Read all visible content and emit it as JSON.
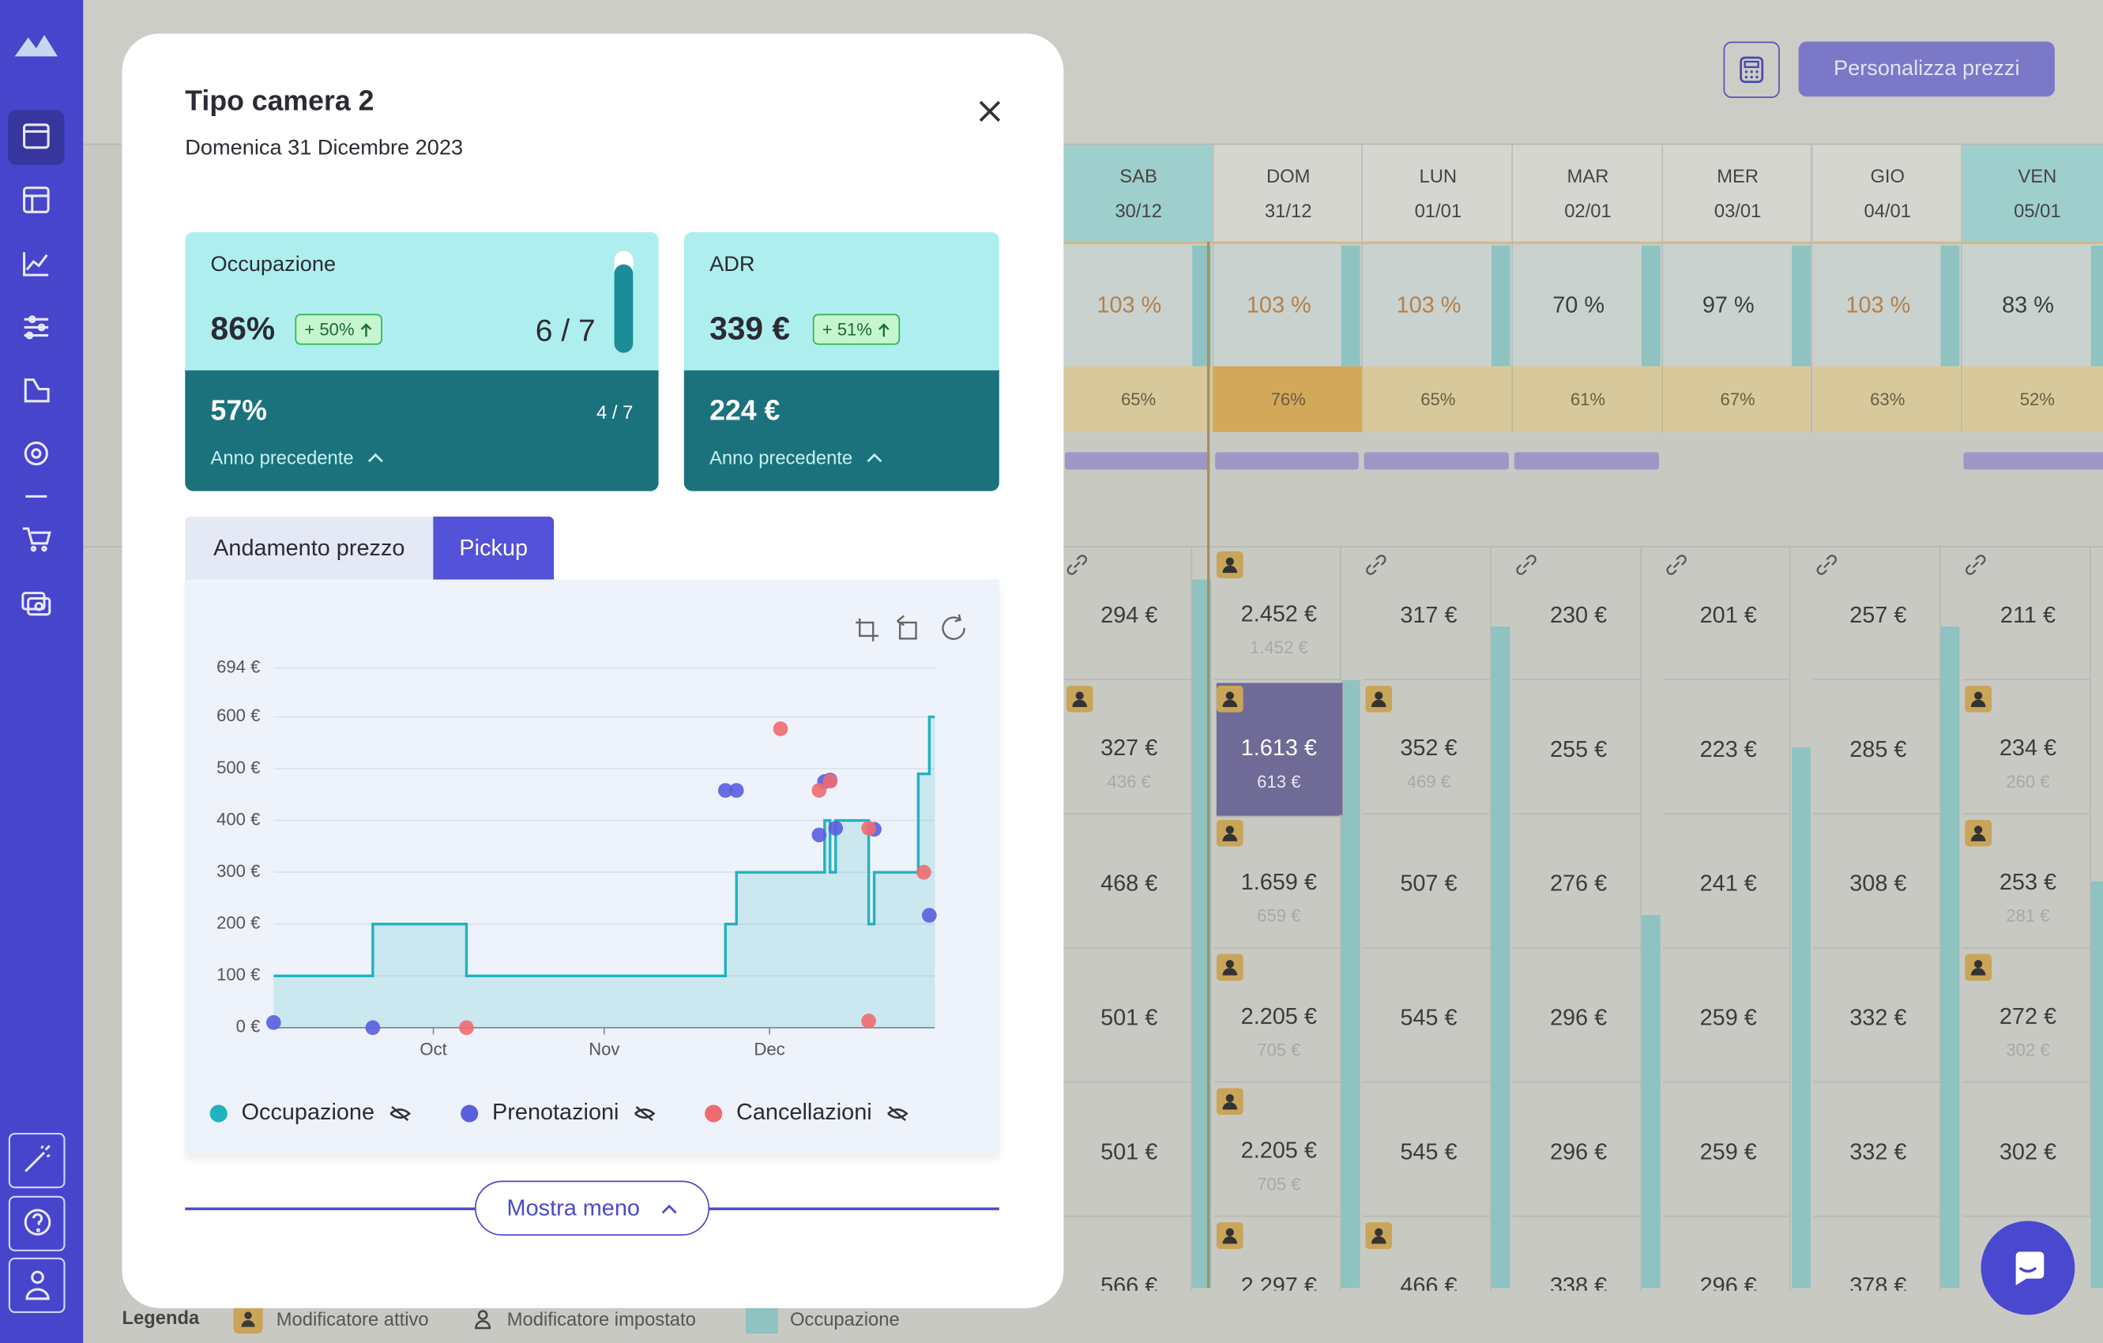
{
  "header": {
    "button": "Personalizza prezzi"
  },
  "calendar": {
    "days": [
      {
        "name": "SAB",
        "date": "30/12",
        "color": "#9fcfcc"
      },
      {
        "name": "DOM",
        "date": "31/12",
        "color": "#d6d6d1"
      },
      {
        "name": "LUN",
        "date": "01/01",
        "color": "#d6d6d1"
      },
      {
        "name": "MAR",
        "date": "02/01",
        "color": "#d6d6d1"
      },
      {
        "name": "MER",
        "date": "03/01",
        "color": "#d6d6d1"
      },
      {
        "name": "GIO",
        "date": "04/01",
        "color": "#d6d6d1"
      },
      {
        "name": "VEN",
        "date": "05/01",
        "color": "#9fcfcc"
      }
    ],
    "occupancy": [
      {
        "label": "103 %",
        "color": "#b5804a"
      },
      {
        "label": "103 %",
        "color": "#b5804a"
      },
      {
        "label": "103 %",
        "color": "#b5804a"
      },
      {
        "label": "70 %",
        "color": "#3d3d3d"
      },
      {
        "label": "97 %",
        "color": "#3d3d3d"
      },
      {
        "label": "103 %",
        "color": "#b5804a"
      },
      {
        "label": "83 %",
        "color": "#3d3d3d"
      }
    ],
    "occupancy_last_year": [
      {
        "label": "65%",
        "color": "#d8c99c"
      },
      {
        "label": "76%",
        "color": "#d3a85a"
      },
      {
        "label": "65%",
        "color": "#d8c99c"
      },
      {
        "label": "61%",
        "color": "#d8c99c"
      },
      {
        "label": "67%",
        "color": "#d8c99c"
      },
      {
        "label": "63%",
        "color": "#d8c99c"
      },
      {
        "label": "52%",
        "color": "#d8c99c"
      }
    ],
    "restrictions": [
      true,
      true,
      true,
      true,
      false,
      false,
      true
    ],
    "prices": [
      [
        {
          "price": "294 €",
          "icon": "link"
        },
        {
          "price": "2.452 €",
          "old": "1.452 €",
          "icon": "modifier"
        },
        {
          "price": "317 €",
          "icon": "link"
        },
        {
          "price": "230 €",
          "icon": "link"
        },
        {
          "price": "201 €",
          "icon": "link"
        },
        {
          "price": "257 €",
          "icon": "link"
        },
        {
          "price": "211 €",
          "icon": "link"
        }
      ],
      [
        {
          "price": "327 €",
          "old": "436 €",
          "icon": "modifier"
        },
        {
          "price": "1.613 €",
          "old": "613 €",
          "icon": "modifier",
          "selected": true
        },
        {
          "price": "352 €",
          "old": "469 €",
          "icon": "modifier"
        },
        {
          "price": "255 €"
        },
        {
          "price": "223 €"
        },
        {
          "price": "285 €"
        },
        {
          "price": "234 €",
          "old": "260 €",
          "icon": "modifier"
        }
      ],
      [
        {
          "price": "468 €"
        },
        {
          "price": "1.659 €",
          "old": "659 €",
          "icon": "modifier"
        },
        {
          "price": "507 €"
        },
        {
          "price": "276 €"
        },
        {
          "price": "241 €"
        },
        {
          "price": "308 €"
        },
        {
          "price": "253 €",
          "old": "281 €",
          "icon": "modifier"
        }
      ],
      [
        {
          "price": "501 €"
        },
        {
          "price": "2.205 €",
          "old": "705 €",
          "icon": "modifier"
        },
        {
          "price": "545 €"
        },
        {
          "price": "296 €"
        },
        {
          "price": "259 €"
        },
        {
          "price": "332 €"
        },
        {
          "price": "272 €",
          "old": "302 €",
          "icon": "modifier"
        }
      ],
      [
        {
          "price": "501 €"
        },
        {
          "price": "2.205 €",
          "old": "705 €",
          "icon": "modifier"
        },
        {
          "price": "545 €"
        },
        {
          "price": "296 €"
        },
        {
          "price": "259 €"
        },
        {
          "price": "332 €"
        },
        {
          "price": "302 €"
        }
      ],
      [
        {
          "price": "566 €"
        },
        {
          "price": "2.297 €",
          "icon": "modifier"
        },
        {
          "price": "466 €",
          "icon": "modifier"
        },
        {
          "price": "338 €"
        },
        {
          "price": "296 €"
        },
        {
          "price": "378 €"
        }
      ]
    ]
  },
  "legend": {
    "title": "Legenda",
    "items": [
      "Modificatore attivo",
      "Modificatore impostato",
      "Occupazione"
    ]
  },
  "modal": {
    "title": "Tipo camera 2",
    "subtitle": "Domenica 31 Dicembre 2023",
    "occupancy_card": {
      "label": "Occupazione",
      "value": "86%",
      "badge": "+ 50%",
      "count": "6 / 7",
      "previous": "57%",
      "previous_count": "4 / 7",
      "link": "Anno precedente"
    },
    "adr_card": {
      "label": "ADR",
      "value": "339 €",
      "badge": "+ 51%",
      "previous": "224 €",
      "link": "Anno precedente"
    },
    "tabs": [
      "Andamento prezzo",
      "Pickup"
    ],
    "toggle": "Mostra meno"
  },
  "chart_data": {
    "type": "line",
    "step": "after",
    "grid": true,
    "xlim": [
      245,
      365
    ],
    "xticks": [
      {
        "value": 274,
        "label": "Oct"
      },
      {
        "value": 305,
        "label": "Nov"
      },
      {
        "value": 335,
        "label": "Dec"
      }
    ],
    "ylim": [
      0,
      694
    ],
    "yticks": [
      {
        "value": 0,
        "label": "0 €"
      },
      {
        "value": 100,
        "label": "100 €"
      },
      {
        "value": 200,
        "label": "200 €"
      },
      {
        "value": 300,
        "label": "300 €"
      },
      {
        "value": 400,
        "label": "400 €"
      },
      {
        "value": 500,
        "label": "500 €"
      },
      {
        "value": 600,
        "label": "600 €"
      },
      {
        "value": 694,
        "label": "694 €"
      }
    ],
    "series": [
      {
        "name": "Occupazione",
        "kind": "step",
        "color": "#1fb3c0",
        "x": [
          245,
          263,
          280,
          327,
          329,
          345,
          346,
          347,
          353,
          354,
          362,
          364,
          365
        ],
        "values": [
          100,
          200,
          100,
          200,
          300,
          400,
          300,
          400,
          200,
          300,
          490,
          600,
          600
        ]
      },
      {
        "name": "Prenotazioni",
        "kind": "scatter",
        "color": "#5a5ee0",
        "x": [
          245,
          263,
          327,
          329,
          344,
          345,
          346,
          347,
          354,
          364
        ],
        "values": [
          10,
          0,
          458,
          458,
          372,
          475,
          478,
          385,
          383,
          217
        ]
      },
      {
        "name": "Cancellazioni",
        "kind": "scatter",
        "color": "#f06b6e",
        "x": [
          280,
          337,
          344,
          346,
          353,
          353,
          363
        ],
        "values": [
          0,
          577,
          458,
          476,
          385,
          13,
          300
        ]
      }
    ]
  }
}
